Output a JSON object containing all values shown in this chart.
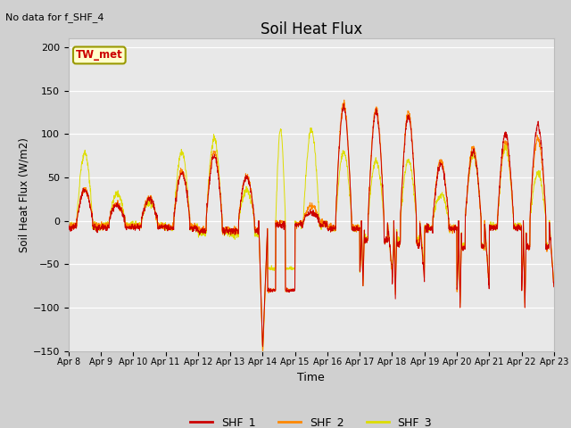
{
  "title": "Soil Heat Flux",
  "xlabel": "Time",
  "ylabel": "Soil Heat Flux (W/m2)",
  "ylim": [
    -150,
    210
  ],
  "yticks": [
    -150,
    -100,
    -50,
    0,
    50,
    100,
    150,
    200
  ],
  "annotation_text": "No data for f_SHF_4",
  "station_label": "TW_met",
  "legend_entries": [
    "SHF_1",
    "SHF_2",
    "SHF_3"
  ],
  "colors": [
    "#cc0000",
    "#ff8800",
    "#dddd00"
  ],
  "x_tick_labels": [
    "Apr 8",
    "Apr 9",
    "Apr 10",
    "Apr 11",
    "Apr 12",
    "Apr 13",
    "Apr 14",
    "Apr 15",
    "Apr 16",
    "Apr 17",
    "Apr 18",
    "Apr 19",
    "Apr 20",
    "Apr 21",
    "Apr 22",
    "Apr 23"
  ],
  "n_days": 15,
  "points_per_day": 144
}
